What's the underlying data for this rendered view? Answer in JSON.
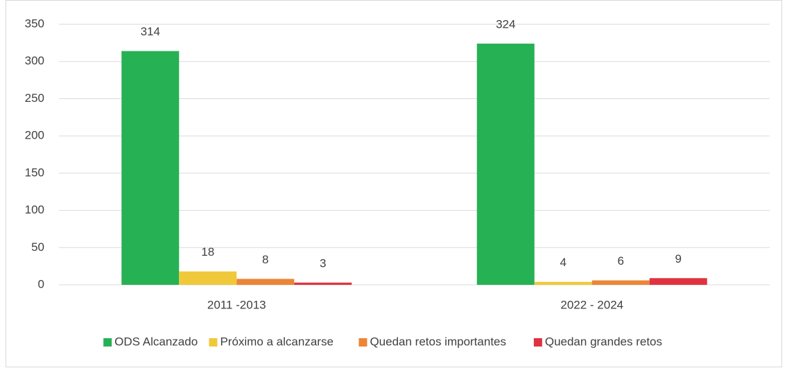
{
  "chart_data": {
    "type": "bar",
    "categories": [
      "2011 -2013",
      "2022 - 2024"
    ],
    "series": [
      {
        "name": "ODS Alcanzado",
        "color": "#27b155",
        "values": [
          314,
          324
        ]
      },
      {
        "name": "Próximo a alcanzarse",
        "color": "#f0c93a",
        "values": [
          18,
          4
        ]
      },
      {
        "name": "Quedan retos importantes",
        "color": "#ec8535",
        "values": [
          8,
          6
        ]
      },
      {
        "name": "Quedan grandes retos",
        "color": "#e0323f",
        "values": [
          3,
          9
        ]
      }
    ],
    "ylim": [
      0,
      350
    ],
    "yticks": [
      0,
      50,
      100,
      150,
      200,
      250,
      300,
      350
    ],
    "grid": true,
    "legend": "bottom"
  }
}
